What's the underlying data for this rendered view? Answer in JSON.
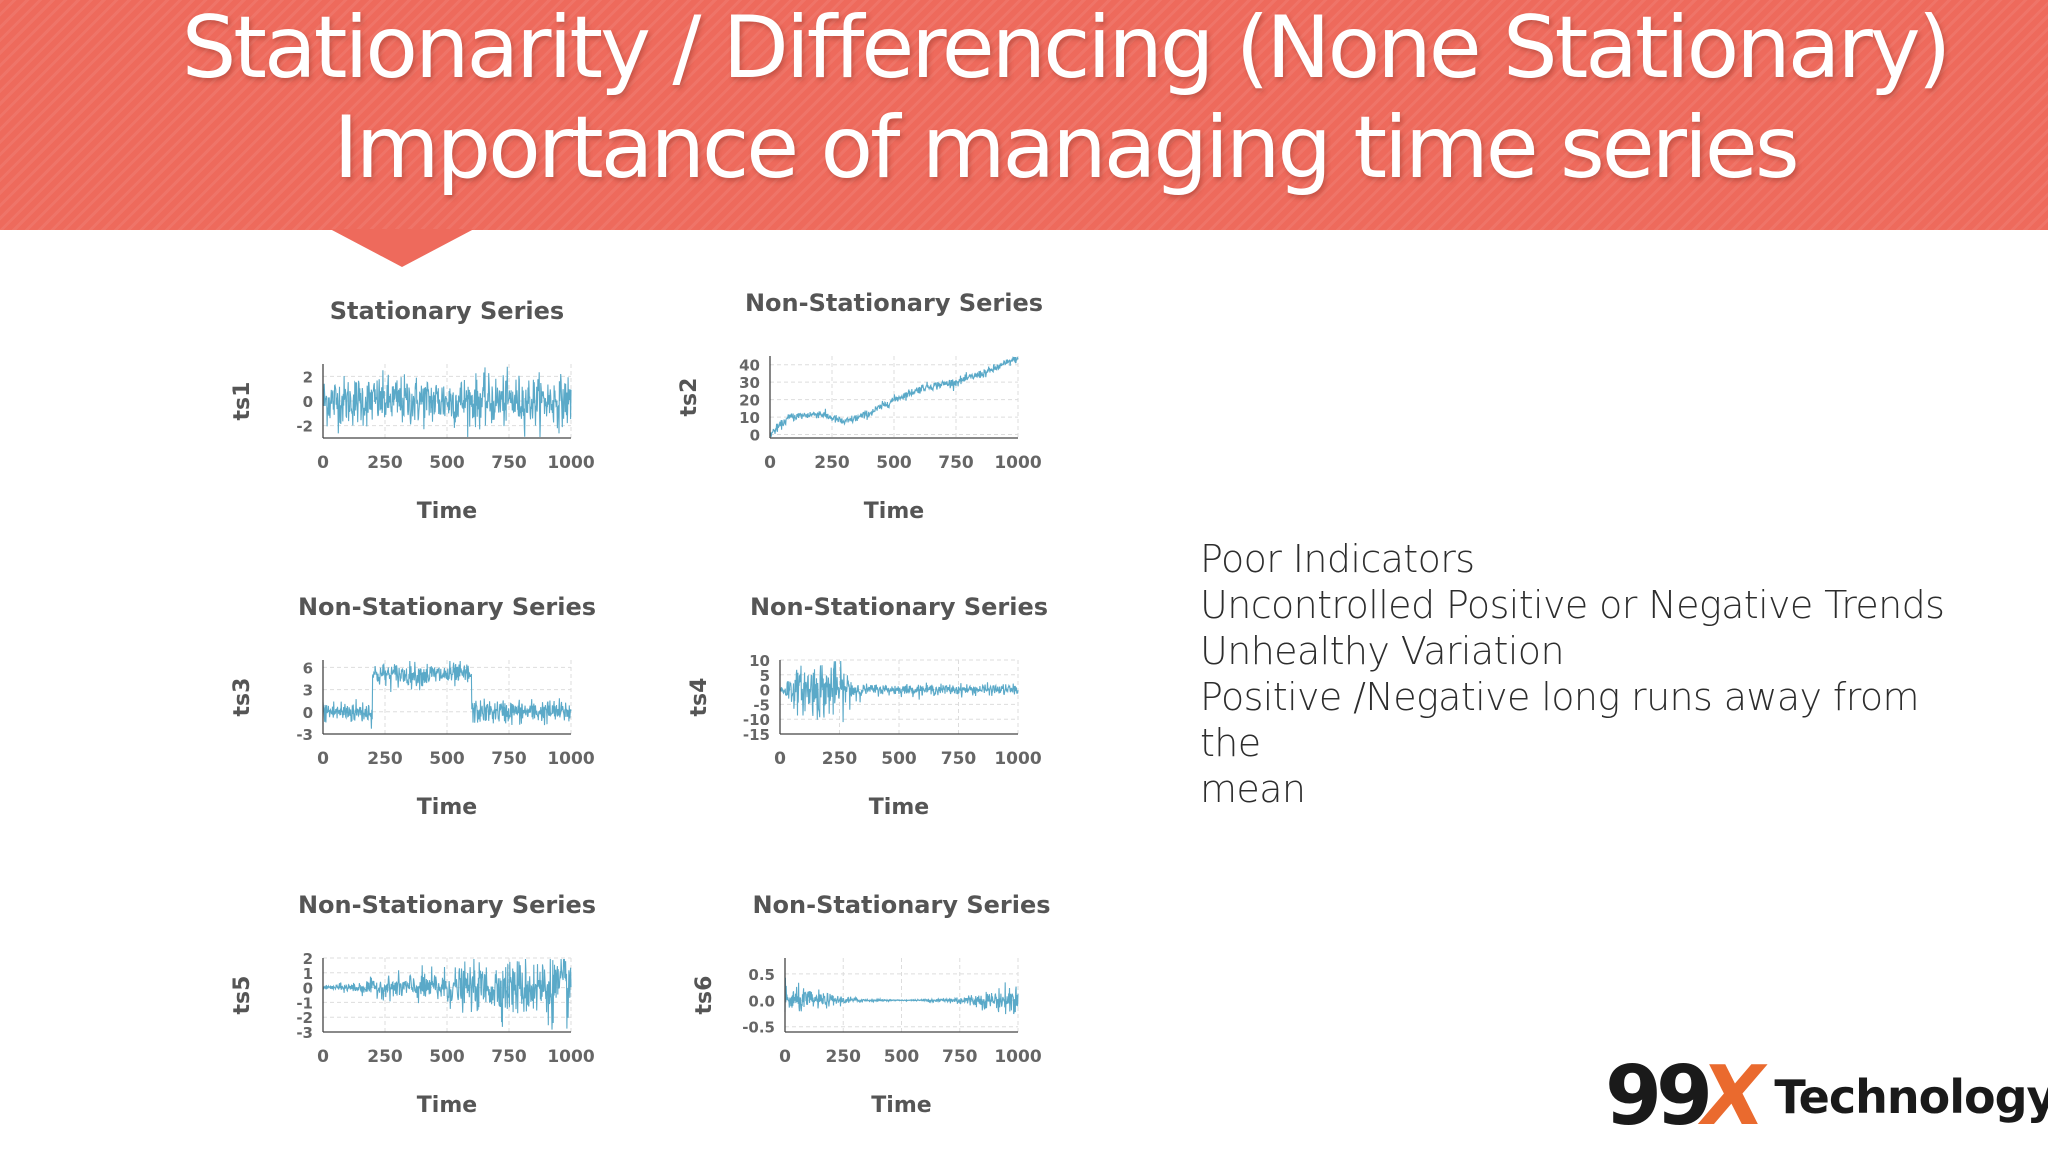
{
  "header": {
    "title_line1": "Stationarity / Differencing (None Stationary)",
    "title_line2": "Importance of managing time series",
    "banner_color": "#ee6a5c"
  },
  "bullets": [
    "Poor Indicators",
    "Uncontrolled Positive or Negative Trends",
    "Unhealthy Variation",
    "Positive /Negative long runs away from the",
    "mean"
  ],
  "logo": {
    "mark": "99",
    "x": "X",
    "word": "Technology",
    "mark_color": "#1a1a1a",
    "x_color": "#ea6a2e"
  },
  "chart_data": [
    {
      "type": "line",
      "title": "Stationary Series",
      "ylabel": "ts1",
      "xlabel": "Time",
      "xlim": [
        0,
        1000
      ],
      "ylim": [
        -3,
        3
      ],
      "xticks": [
        "0",
        "250",
        "500",
        "750",
        "1000"
      ],
      "yticks": [
        "2",
        "0",
        "-2"
      ],
      "series": [
        {
          "kind": "noise",
          "mean": 0,
          "sd": 1.0,
          "color": "#5aa9c8"
        }
      ]
    },
    {
      "type": "line",
      "title": "Non-Stationary Series",
      "ylabel": "ts2",
      "xlabel": "Time",
      "xlim": [
        0,
        1000
      ],
      "ylim": [
        -2,
        45
      ],
      "xticks": [
        "0",
        "250",
        "500",
        "750",
        "1000"
      ],
      "yticks": [
        "40",
        "30",
        "20",
        "10",
        "0"
      ],
      "series": [
        {
          "kind": "random_walk",
          "points": [
            [
              0,
              0
            ],
            [
              80,
              10
            ],
            [
              200,
              12
            ],
            [
              300,
              7
            ],
            [
              400,
              12
            ],
            [
              500,
              20
            ],
            [
              620,
              27
            ],
            [
              750,
              30
            ],
            [
              880,
              36
            ],
            [
              1000,
              44
            ]
          ],
          "sd": 1.2,
          "color": "#5aa9c8"
        }
      ]
    },
    {
      "type": "line",
      "title": "Non-Stationary Series",
      "ylabel": "ts3",
      "xlabel": "Time",
      "xlim": [
        0,
        1000
      ],
      "ylim": [
        -3,
        7
      ],
      "xticks": [
        "0",
        "250",
        "500",
        "750",
        "1000"
      ],
      "yticks": [
        "6",
        "3",
        "0",
        "-3"
      ],
      "series": [
        {
          "kind": "level_shift",
          "segments": [
            [
              0,
              200,
              0
            ],
            [
              200,
              600,
              5
            ],
            [
              600,
              1000,
              0
            ]
          ],
          "sd": 0.8,
          "color": "#5aa9c8"
        }
      ]
    },
    {
      "type": "line",
      "title": "Non-Stationary Series",
      "ylabel": "ts4",
      "xlabel": "Time",
      "xlim": [
        0,
        1000
      ],
      "ylim": [
        -15,
        10
      ],
      "xticks": [
        "0",
        "250",
        "500",
        "750",
        "1000"
      ],
      "yticks": [
        "10",
        "5",
        "0",
        "-5",
        "-10",
        "-15"
      ],
      "series": [
        {
          "kind": "variance_burst",
          "mean": 0,
          "base_sd": 0.9,
          "burst": [
            0,
            350
          ],
          "burst_sd": 4.0,
          "color": "#5aa9c8"
        }
      ]
    },
    {
      "type": "line",
      "title": "Non-Stationary Series",
      "ylabel": "ts5",
      "xlabel": "Time",
      "xlim": [
        0,
        1000
      ],
      "ylim": [
        -3,
        2
      ],
      "xticks": [
        "0",
        "250",
        "500",
        "750",
        "1000"
      ],
      "yticks": [
        "2",
        "1",
        "0",
        "-1",
        "-2",
        "-3"
      ],
      "series": [
        {
          "kind": "growing_variance",
          "mean": 0,
          "sd_start": 0.05,
          "sd_end": 1.2,
          "color": "#5aa9c8"
        }
      ]
    },
    {
      "type": "line",
      "title": "Non-Stationary Series",
      "ylabel": "ts6",
      "xlabel": "Time",
      "xlim": [
        0,
        1000
      ],
      "ylim": [
        -0.6,
        0.8
      ],
      "xticks": [
        "0",
        "250",
        "500",
        "750",
        "1000"
      ],
      "yticks": [
        "0.5",
        "0.0",
        "-0.5"
      ],
      "series": [
        {
          "kind": "shrink_grow_variance",
          "mean": 0,
          "sd_edge": 0.15,
          "sd_mid": 0.005,
          "color": "#5aa9c8"
        }
      ]
    }
  ]
}
